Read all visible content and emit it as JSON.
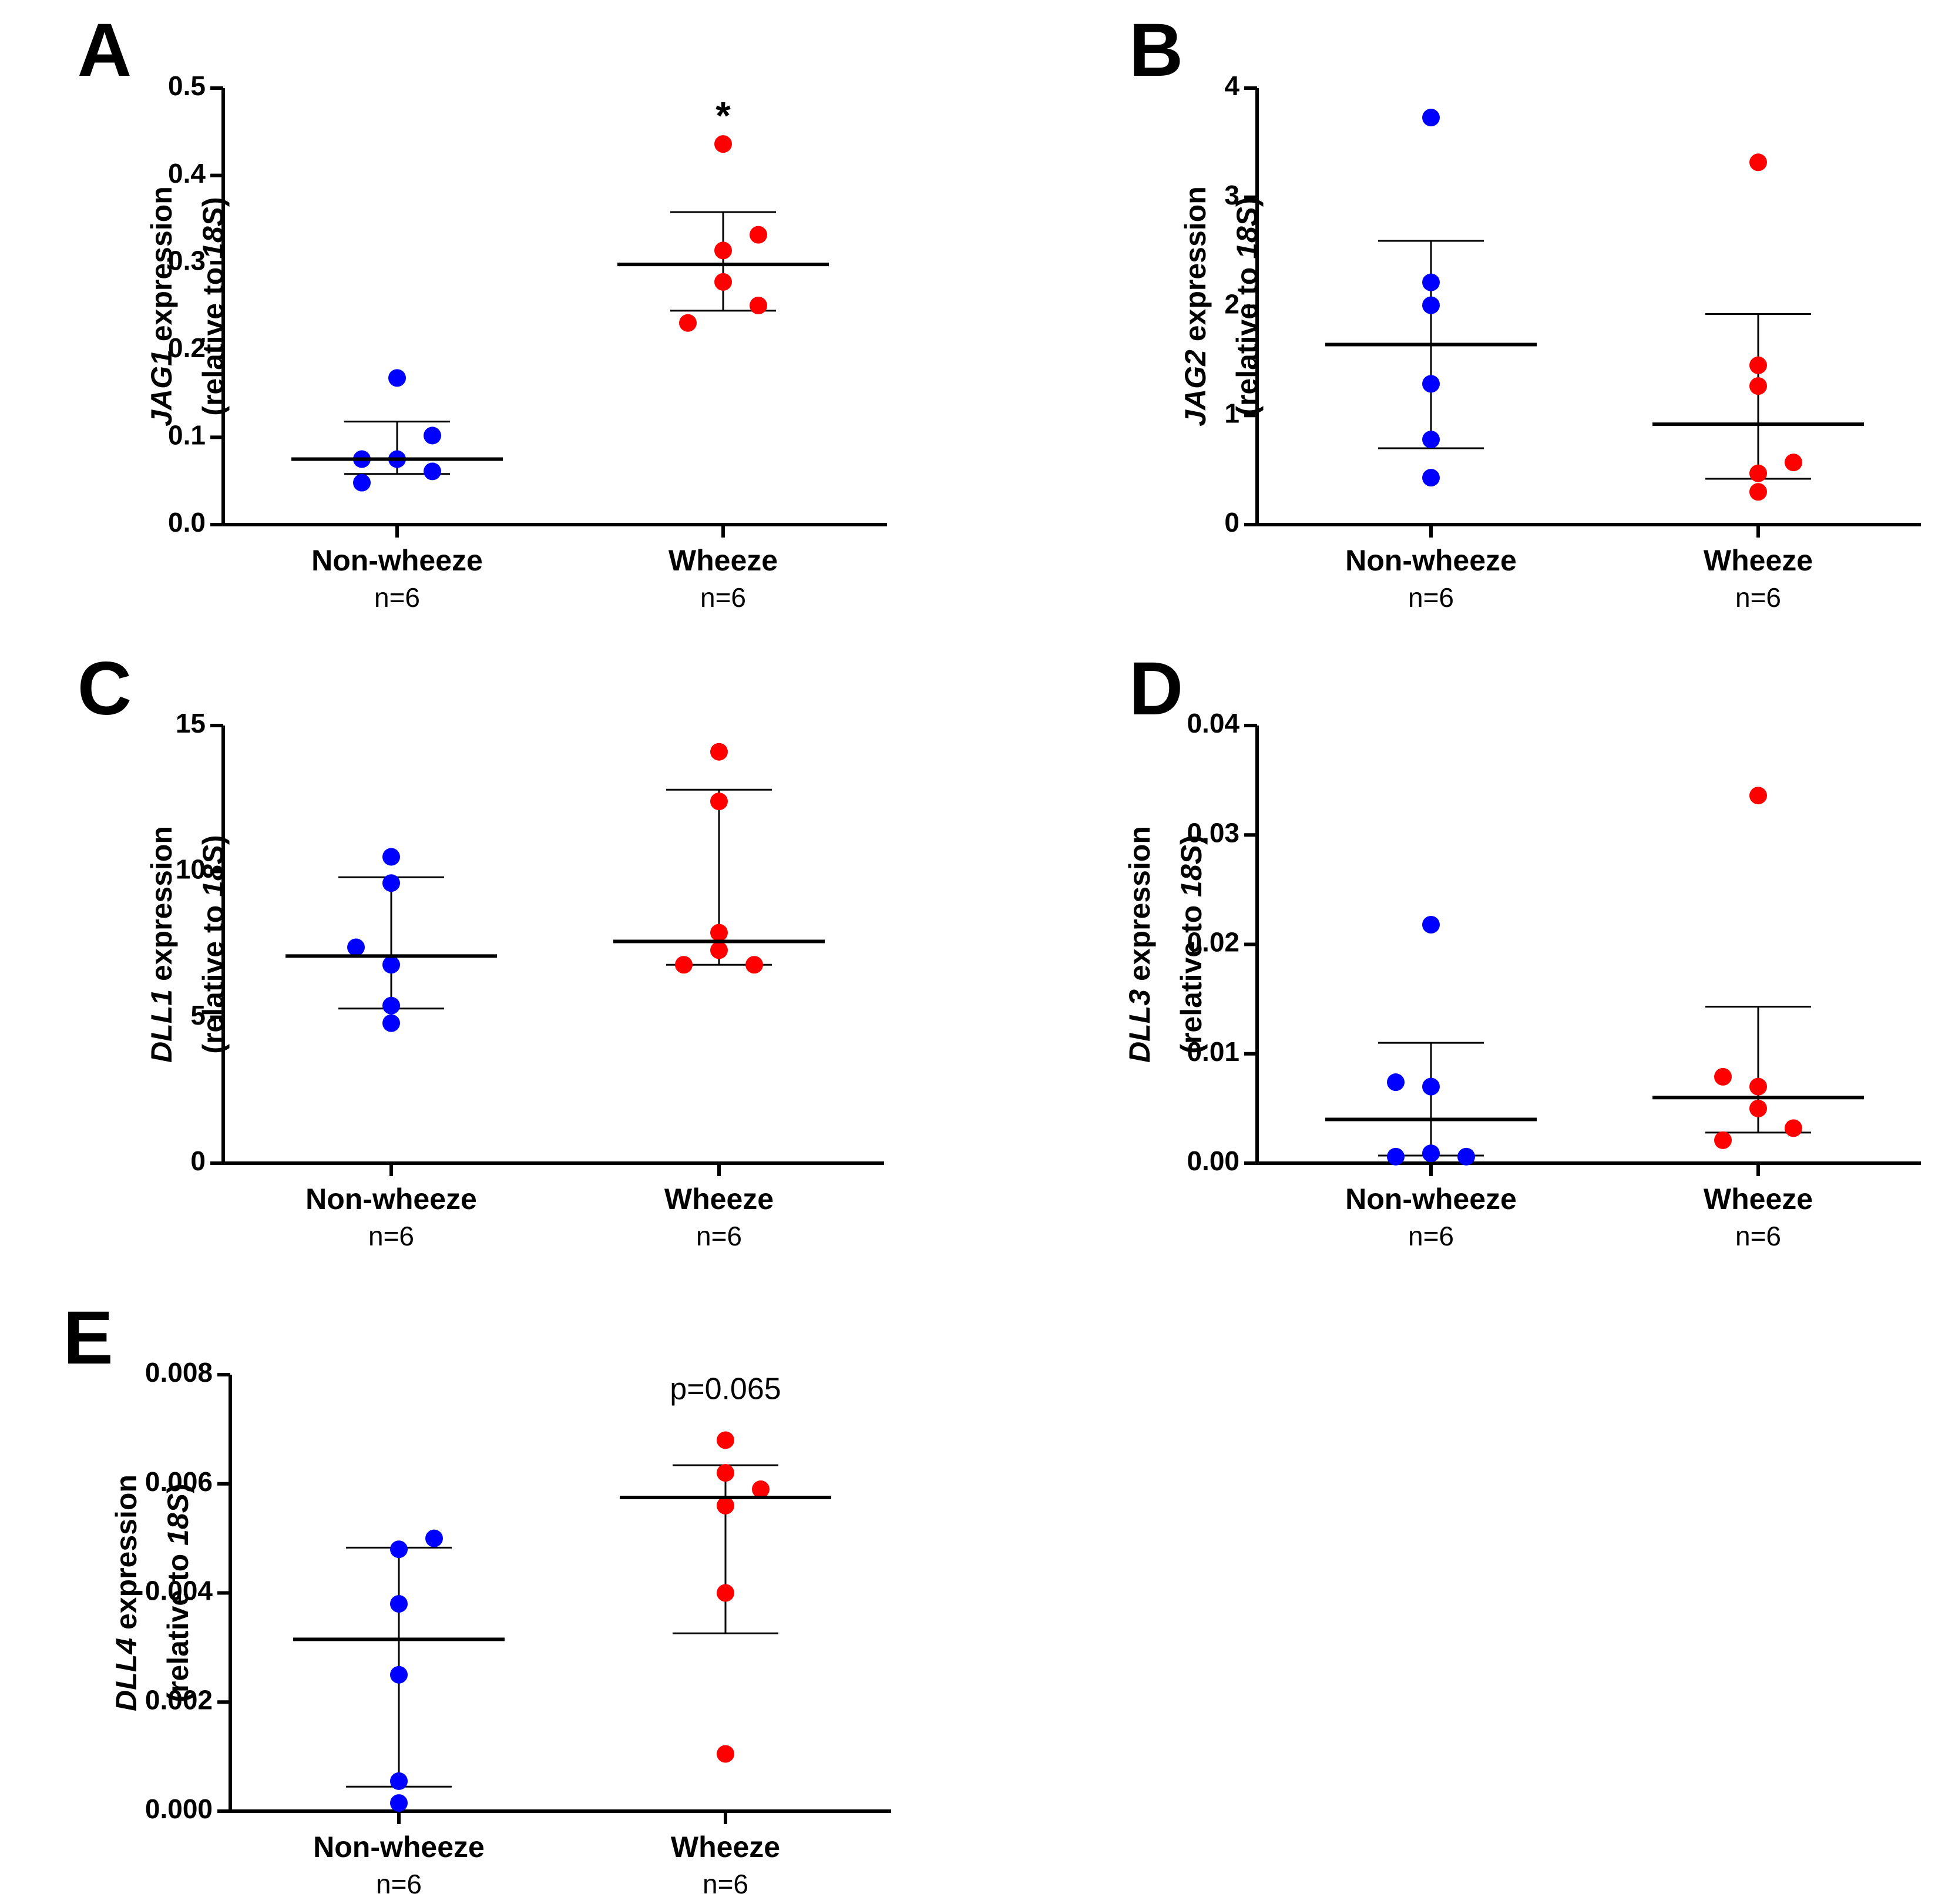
{
  "colors": {
    "non_wheeze": "#0000ff",
    "wheeze": "#ff0000",
    "axis": "#000000"
  },
  "chart_data": [
    {
      "type": "scatter",
      "panel": "A",
      "gene": "JAG1",
      "ylabel_suffix": " expression",
      "ylabel_line2_prefix": "(relative to ",
      "ylabel_line2_ref": "18S",
      "ylabel_line2_suffix": ")",
      "ylim": [
        0,
        0.5
      ],
      "yticks": [
        0.0,
        0.1,
        0.2,
        0.3,
        0.4,
        0.5
      ],
      "ytick_labels": [
        "0.0",
        "0.1",
        "0.2",
        "0.3",
        "0.4",
        "0.5"
      ],
      "categories": [
        "Non-wheeze",
        "Wheeze"
      ],
      "n_labels": [
        "n=6",
        "n=6"
      ],
      "series": [
        {
          "name": "Non-wheeze",
          "color": "#0000ff",
          "median": 0.075,
          "iqr": [
            0.058,
            0.118
          ],
          "points": [
            {
              "dx": 0,
              "y": 0.168
            },
            {
              "dx": 1,
              "y": 0.102
            },
            {
              "dx": -1,
              "y": 0.075
            },
            {
              "dx": 0,
              "y": 0.075
            },
            {
              "dx": 1,
              "y": 0.061
            },
            {
              "dx": -1,
              "y": 0.048
            }
          ]
        },
        {
          "name": "Wheeze",
          "color": "#ff0000",
          "median": 0.298,
          "iqr": [
            0.245,
            0.358
          ],
          "points": [
            {
              "dx": 0,
              "y": 0.436
            },
            {
              "dx": 1,
              "y": 0.332
            },
            {
              "dx": 0,
              "y": 0.314
            },
            {
              "dx": 0,
              "y": 0.278
            },
            {
              "dx": 1,
              "y": 0.251
            },
            {
              "dx": -1,
              "y": 0.231
            }
          ]
        }
      ],
      "annotation": {
        "text": "*",
        "category": 1,
        "y": 0.465
      }
    },
    {
      "type": "scatter",
      "panel": "B",
      "gene": "JAG2",
      "ylabel_suffix": " expression",
      "ylabel_line2_prefix": "(relative to ",
      "ylabel_line2_ref": "18S",
      "ylabel_line2_suffix": ")",
      "ylim": [
        0,
        4
      ],
      "yticks": [
        0,
        1,
        2,
        3,
        4
      ],
      "ytick_labels": [
        "0",
        "1",
        "2",
        "3",
        "4"
      ],
      "categories": [
        "Non-wheeze",
        "Wheeze"
      ],
      "n_labels": [
        "n=6",
        "n=6"
      ],
      "series": [
        {
          "name": "Non-wheeze",
          "color": "#0000ff",
          "median": 1.65,
          "iqr": [
            0.7,
            2.6
          ],
          "points": [
            {
              "dx": 0,
              "y": 3.73
            },
            {
              "dx": 0,
              "y": 2.22
            },
            {
              "dx": 0,
              "y": 2.01
            },
            {
              "dx": 0,
              "y": 1.29
            },
            {
              "dx": 0,
              "y": 0.78
            },
            {
              "dx": 0,
              "y": 0.43
            }
          ]
        },
        {
          "name": "Wheeze",
          "color": "#ff0000",
          "median": 0.92,
          "iqr": [
            0.42,
            1.93
          ],
          "points": [
            {
              "dx": 0,
              "y": 3.32
            },
            {
              "dx": 0,
              "y": 1.46
            },
            {
              "dx": 0,
              "y": 1.27
            },
            {
              "dx": 1,
              "y": 0.57
            },
            {
              "dx": 0,
              "y": 0.47
            },
            {
              "dx": 0,
              "y": 0.3
            }
          ]
        }
      ]
    },
    {
      "type": "scatter",
      "panel": "C",
      "gene": "DLL1",
      "ylabel_suffix": " expression",
      "ylabel_line2_prefix": "(relative to ",
      "ylabel_line2_ref": "18S",
      "ylabel_line2_suffix": ")",
      "ylim": [
        0,
        15
      ],
      "yticks": [
        0,
        5,
        10,
        15
      ],
      "ytick_labels": [
        "0",
        "5",
        "10",
        "15"
      ],
      "categories": [
        "Non-wheeze",
        "Wheeze"
      ],
      "n_labels": [
        "n=6",
        "n=6"
      ],
      "series": [
        {
          "name": "Non-wheeze",
          "color": "#0000ff",
          "median": 7.1,
          "iqr": [
            5.3,
            9.8
          ],
          "points": [
            {
              "dx": 0,
              "y": 10.5
            },
            {
              "dx": 0,
              "y": 9.6
            },
            {
              "dx": -1,
              "y": 7.4
            },
            {
              "dx": 0,
              "y": 6.8
            },
            {
              "dx": 0,
              "y": 5.4
            },
            {
              "dx": 0,
              "y": 4.8
            }
          ]
        },
        {
          "name": "Wheeze",
          "color": "#ff0000",
          "median": 7.6,
          "iqr": [
            6.8,
            12.8
          ],
          "points": [
            {
              "dx": 0,
              "y": 14.1
            },
            {
              "dx": 0,
              "y": 12.4
            },
            {
              "dx": 0,
              "y": 7.9
            },
            {
              "dx": 0,
              "y": 7.3
            },
            {
              "dx": -1,
              "y": 6.8
            },
            {
              "dx": 1,
              "y": 6.8
            }
          ]
        }
      ]
    },
    {
      "type": "scatter",
      "panel": "D",
      "gene": "DLL3",
      "ylabel_suffix": " expression",
      "ylabel_line2_prefix": "(relative to ",
      "ylabel_line2_ref": "18S",
      "ylabel_line2_suffix": ")",
      "ylim": [
        0,
        0.04
      ],
      "yticks": [
        0.0,
        0.01,
        0.02,
        0.03,
        0.04
      ],
      "ytick_labels": [
        "0.00",
        "0.01",
        "0.02",
        "0.03",
        "0.04"
      ],
      "categories": [
        "Non-wheeze",
        "Wheeze"
      ],
      "n_labels": [
        "n=6",
        "n=6"
      ],
      "series": [
        {
          "name": "Non-wheeze",
          "color": "#0000ff",
          "median": 0.004,
          "iqr": [
            0.0007,
            0.011
          ],
          "points": [
            {
              "dx": 0,
              "y": 0.0218
            },
            {
              "dx": -1,
              "y": 0.0074
            },
            {
              "dx": 0,
              "y": 0.007
            },
            {
              "dx": 0,
              "y": 0.0009
            },
            {
              "dx": -1,
              "y": 0.0006
            },
            {
              "dx": 1,
              "y": 0.0006
            }
          ]
        },
        {
          "name": "Wheeze",
          "color": "#ff0000",
          "median": 0.006,
          "iqr": [
            0.0028,
            0.0143
          ],
          "points": [
            {
              "dx": 0,
              "y": 0.0336
            },
            {
              "dx": -1,
              "y": 0.0079
            },
            {
              "dx": 0,
              "y": 0.007
            },
            {
              "dx": 0,
              "y": 0.005
            },
            {
              "dx": 1,
              "y": 0.0032
            },
            {
              "dx": -1,
              "y": 0.0021
            }
          ]
        }
      ]
    },
    {
      "type": "scatter",
      "panel": "E",
      "gene": "DLL4",
      "ylabel_suffix": " expression",
      "ylabel_line2_prefix": "(relative to ",
      "ylabel_line2_ref": "18S",
      "ylabel_line2_suffix": ")",
      "ylim": [
        0,
        0.008
      ],
      "yticks": [
        0.0,
        0.002,
        0.004,
        0.006,
        0.008
      ],
      "ytick_labels": [
        "0.000",
        "0.002",
        "0.004",
        "0.006",
        "0.008"
      ],
      "categories": [
        "Non-wheeze",
        "Wheeze"
      ],
      "n_labels": [
        "n=6",
        "n=6"
      ],
      "series": [
        {
          "name": "Non-wheeze",
          "color": "#0000ff",
          "median": 0.00315,
          "iqr": [
            0.00045,
            0.00483
          ],
          "points": [
            {
              "dx": 1,
              "y": 0.005
            },
            {
              "dx": 0,
              "y": 0.0048
            },
            {
              "dx": 0,
              "y": 0.0038
            },
            {
              "dx": 0,
              "y": 0.0025
            },
            {
              "dx": 0,
              "y": 0.00055
            },
            {
              "dx": 0,
              "y": 0.00015
            }
          ]
        },
        {
          "name": "Wheeze",
          "color": "#ff0000",
          "median": 0.00575,
          "iqr": [
            0.00326,
            0.00634
          ],
          "points": [
            {
              "dx": 0,
              "y": 0.0068
            },
            {
              "dx": 0,
              "y": 0.0062
            },
            {
              "dx": 1,
              "y": 0.0059
            },
            {
              "dx": 0,
              "y": 0.0056
            },
            {
              "dx": 0,
              "y": 0.004
            },
            {
              "dx": 0,
              "y": 0.00105
            }
          ]
        }
      ],
      "annotation": {
        "text": "p=0.065",
        "category": 1,
        "y": 0.0077
      }
    }
  ]
}
